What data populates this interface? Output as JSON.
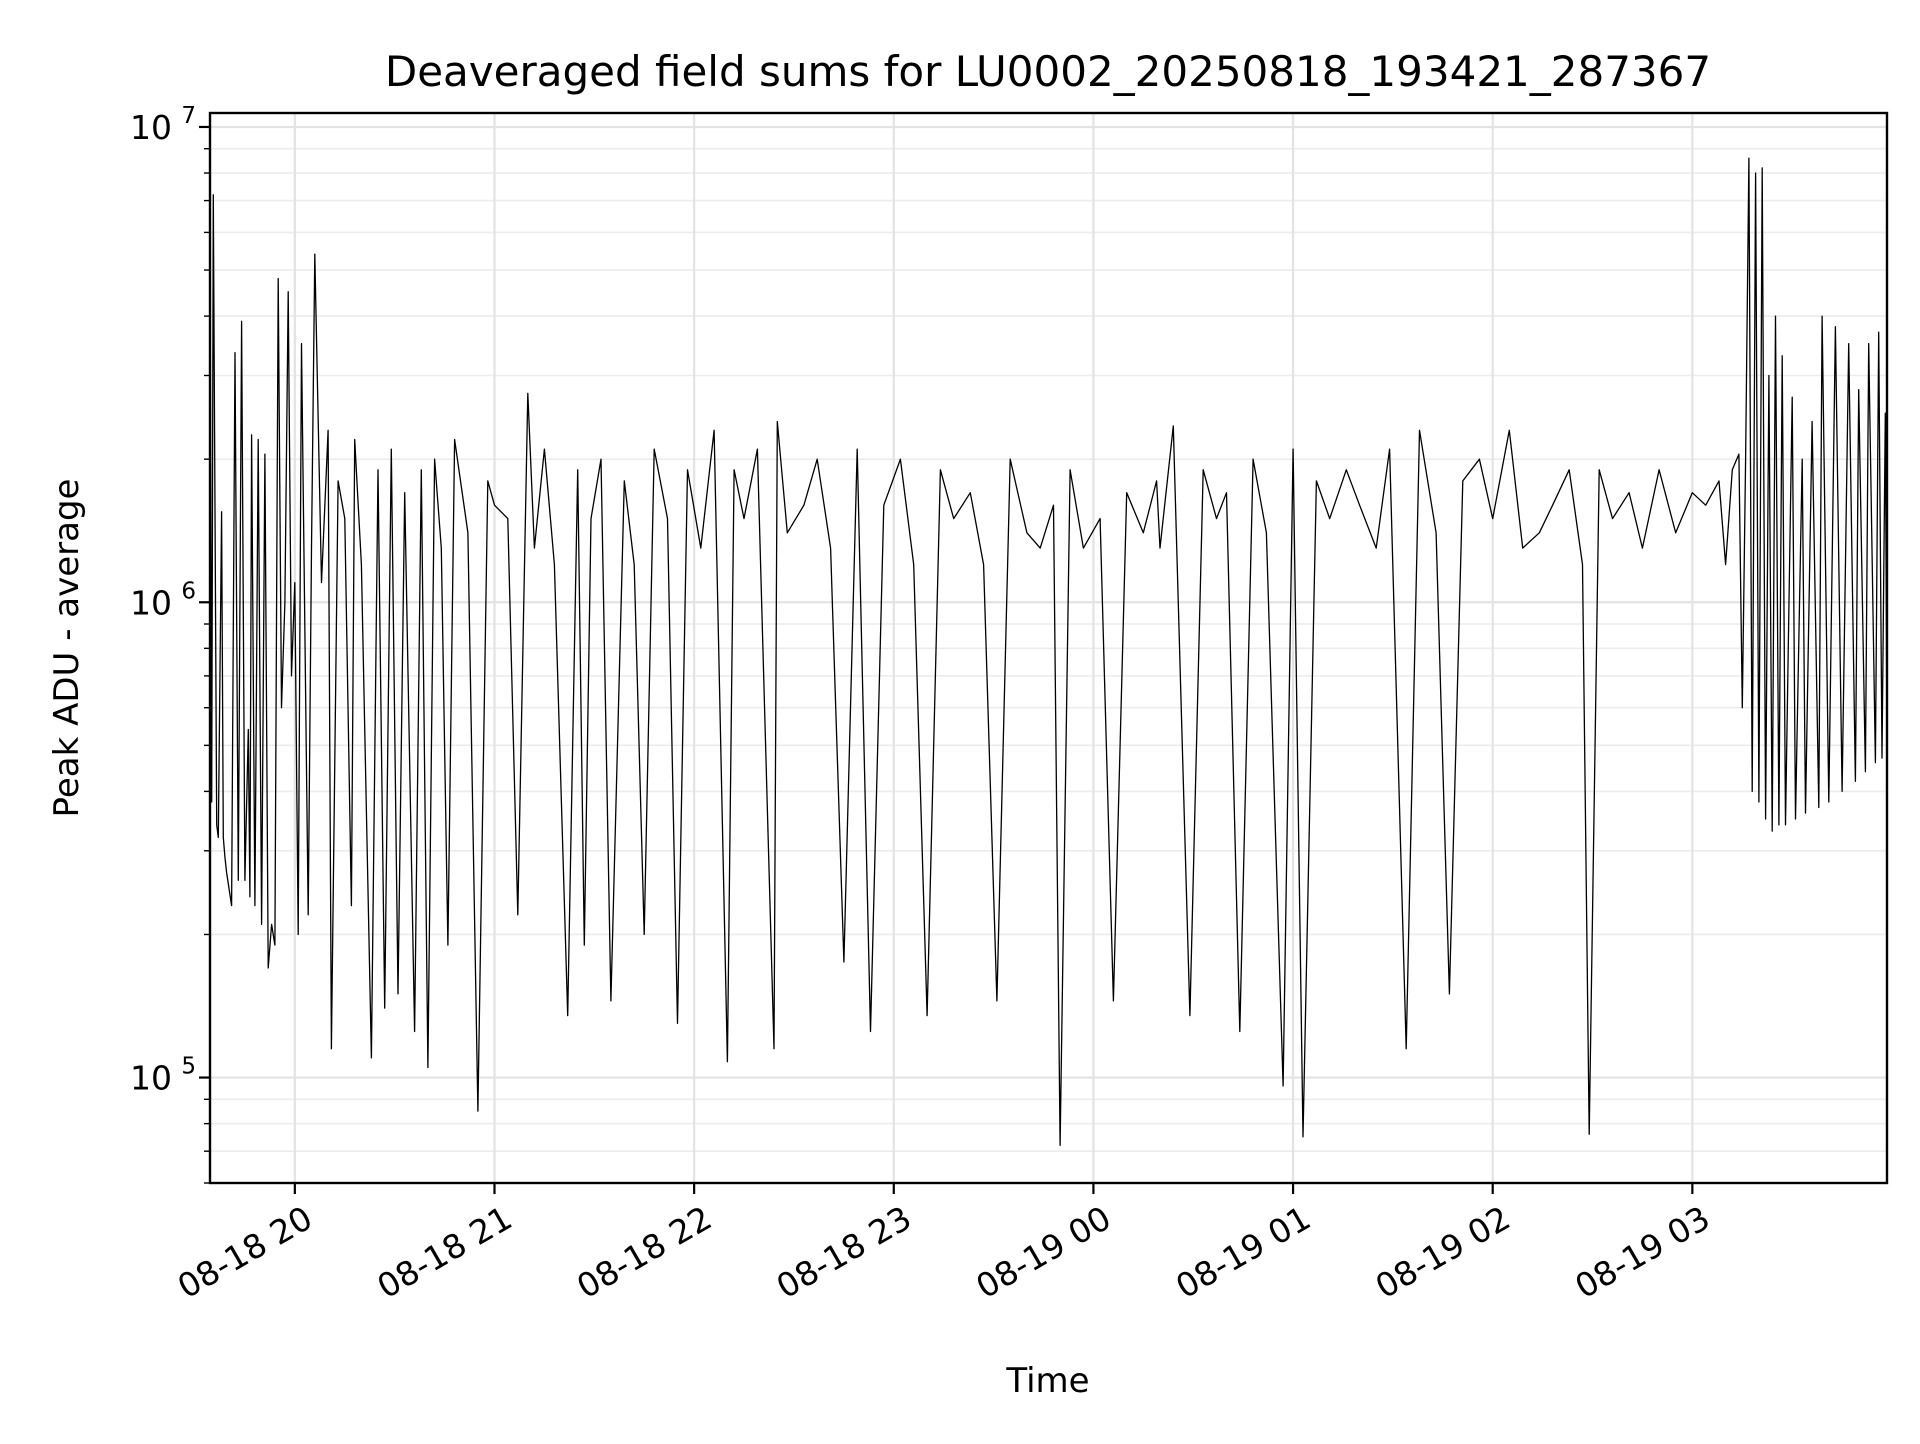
{
  "chart_data": {
    "type": "line",
    "title": "Deaveraged field sums for LU0002_20250818_193421_287367",
    "xlabel": "Time",
    "ylabel": "Peak ADU - average",
    "yscale": "log",
    "ylim": [
      60000,
      10700000
    ],
    "xlim": [
      "08-18 19:34:30",
      "08-19 03:58:30"
    ],
    "grid": true,
    "x_ticks": [
      {
        "label": "08-18 20",
        "time": "08-18 20:00"
      },
      {
        "label": "08-18 21",
        "time": "08-18 21:00"
      },
      {
        "label": "08-18 22",
        "time": "08-18 22:00"
      },
      {
        "label": "08-18 23",
        "time": "08-18 23:00"
      },
      {
        "label": "08-19 00",
        "time": "08-19 00:00"
      },
      {
        "label": "08-19 01",
        "time": "08-19 01:00"
      },
      {
        "label": "08-19 02",
        "time": "08-19 02:00"
      },
      {
        "label": "08-19 03",
        "time": "08-19 03:00"
      }
    ],
    "y_ticks": [
      {
        "base": "10",
        "exp": "5",
        "value": 100000
      },
      {
        "base": "10",
        "exp": "6",
        "value": 1000000
      },
      {
        "base": "10",
        "exp": "7",
        "value": 10000000
      }
    ],
    "series": [
      {
        "color": "#000000",
        "x": [
          "08-18 19:34:30",
          "08-18 19:35:00",
          "08-18 19:35:30",
          "08-18 19:36:30",
          "08-18 19:37:00",
          "08-18 19:38:00",
          "08-18 19:38:30",
          "08-18 19:39:00",
          "08-18 19:39:30",
          "08-18 19:41:00",
          "08-18 19:42:00",
          "08-18 19:43:00",
          "08-18 19:44:00",
          "08-18 19:45:00",
          "08-18 19:46:00",
          "08-18 19:46:30",
          "08-18 19:47:00",
          "08-18 19:48:00",
          "08-18 19:49:00",
          "08-18 19:50:00",
          "08-18 19:51:00",
          "08-18 19:52:00",
          "08-18 19:53:00",
          "08-18 19:54:00",
          "08-18 19:55:00",
          "08-18 19:56:00",
          "08-18 19:57:00",
          "08-18 19:58:00",
          "08-18 19:59:00",
          "08-18 20:00:00",
          "08-18 20:01:00",
          "08-18 20:02:00",
          "08-18 20:03:00",
          "08-18 20:04:00",
          "08-18 20:05:00",
          "08-18 20:06:00",
          "08-18 20:08:00",
          "08-18 20:10:00",
          "08-18 20:11:00",
          "08-18 20:13:00",
          "08-18 20:15:00",
          "08-18 20:17:00",
          "08-18 20:18:00",
          "08-18 20:20:00",
          "08-18 20:23:00",
          "08-18 20:25:00",
          "08-18 20:27:00",
          "08-18 20:29:00",
          "08-18 20:31:00",
          "08-18 20:33:00",
          "08-18 20:36:00",
          "08-18 20:38:00",
          "08-18 20:40:00",
          "08-18 20:42:00",
          "08-18 20:44:00",
          "08-18 20:46:00",
          "08-18 20:48:00",
          "08-18 20:52:00",
          "08-18 20:55:00",
          "08-18 20:58:00",
          "08-18 21:00:00",
          "08-18 21:04:00",
          "08-18 21:07:00",
          "08-18 21:10:00",
          "08-18 21:12:00",
          "08-18 21:15:00",
          "08-18 21:18:00",
          "08-18 21:22:00",
          "08-18 21:25:00",
          "08-18 21:27:00",
          "08-18 21:29:00",
          "08-18 21:32:00",
          "08-18 21:35:00",
          "08-18 21:39:00",
          "08-18 21:42:00",
          "08-18 21:45:00",
          "08-18 21:48:00",
          "08-18 21:52:00",
          "08-18 21:55:00",
          "08-18 21:58:00",
          "08-18 22:02:00",
          "08-18 22:06:00",
          "08-18 22:10:00",
          "08-18 22:12:00",
          "08-18 22:15:00",
          "08-18 22:19:00",
          "08-18 22:24:00",
          "08-18 22:25:00",
          "08-18 22:28:00",
          "08-18 22:33:00",
          "08-18 22:37:00",
          "08-18 22:41:00",
          "08-18 22:45:00",
          "08-18 22:49:00",
          "08-18 22:53:00",
          "08-18 22:57:00",
          "08-18 23:02:00",
          "08-18 23:06:00",
          "08-18 23:10:00",
          "08-18 23:14:00",
          "08-18 23:18:00",
          "08-18 23:23:00",
          "08-18 23:27:00",
          "08-18 23:31:00",
          "08-18 23:35:00",
          "08-18 23:40:00",
          "08-18 23:44:00",
          "08-18 23:48:00",
          "08-18 23:50:00",
          "08-18 23:53:00",
          "08-18 23:57:00",
          "08-19 00:02:00",
          "08-19 00:06:00",
          "08-19 00:10:00",
          "08-19 00:15:00",
          "08-19 00:19:00",
          "08-19 00:20:00",
          "08-19 00:24:00",
          "08-19 00:29:00",
          "08-19 00:33:00",
          "08-19 00:37:00",
          "08-19 00:40:00",
          "08-19 00:44:00",
          "08-19 00:48:00",
          "08-19 00:52:00",
          "08-19 00:57:00",
          "08-19 01:00:00",
          "08-19 01:03:00",
          "08-19 01:07:00",
          "08-19 01:11:00",
          "08-19 01:16:00",
          "08-19 01:20:00",
          "08-19 01:25:00",
          "08-19 01:29:00",
          "08-19 01:34:00",
          "08-19 01:38:00",
          "08-19 01:43:00",
          "08-19 01:47:00",
          "08-19 01:51:00",
          "08-19 01:56:00",
          "08-19 02:00:00",
          "08-19 02:05:00",
          "08-19 02:09:00",
          "08-19 02:14:00",
          "08-19 02:18:00",
          "08-19 02:23:00",
          "08-19 02:27:00",
          "08-19 02:29:00",
          "08-19 02:32:00",
          "08-19 02:36:00",
          "08-19 02:41:00",
          "08-19 02:45:00",
          "08-19 02:50:00",
          "08-19 02:55:00",
          "08-19 03:00:00",
          "08-19 03:04:00",
          "08-19 03:08:00",
          "08-19 03:10:00",
          "08-19 03:12:00",
          "08-19 03:14:00",
          "08-19 03:15:00",
          "08-19 03:16:00",
          "08-19 03:17:00",
          "08-19 03:18:00",
          "08-19 03:19:00",
          "08-19 03:20:00",
          "08-19 03:21:00",
          "08-19 03:22:00",
          "08-19 03:23:00",
          "08-19 03:24:00",
          "08-19 03:25:00",
          "08-19 03:26:00",
          "08-19 03:27:00",
          "08-19 03:28:00",
          "08-19 03:30:00",
          "08-19 03:31:00",
          "08-19 03:33:00",
          "08-19 03:34:00",
          "08-19 03:36:00",
          "08-19 03:38:00",
          "08-19 03:39:00",
          "08-19 03:41:00",
          "08-19 03:43:00",
          "08-19 03:45:00",
          "08-19 03:47:00",
          "08-19 03:49:00",
          "08-19 03:50:00",
          "08-19 03:52:00",
          "08-19 03:53:00",
          "08-19 03:55:00",
          "08-19 03:56:00",
          "08-19 03:57:00",
          "08-19 03:58:00",
          "08-19 03:58:30"
        ],
        "y": [
          6000000,
          380000,
          7200000,
          340000,
          320000,
          1550000,
          320000,
          290000,
          270000,
          230000,
          3350000,
          260000,
          3900000,
          260000,
          540000,
          240000,
          2250000,
          230000,
          2200000,
          210000,
          2050000,
          170000,
          210000,
          190000,
          4800000,
          600000,
          1000000,
          4500000,
          700000,
          1100000,
          200000,
          3500000,
          900000,
          220000,
          1300000,
          5400000,
          1100000,
          2300000,
          115000,
          1800000,
          1500000,
          230000,
          2200000,
          1200000,
          110000,
          1900000,
          140000,
          2100000,
          150000,
          1700000,
          125000,
          1900000,
          105000,
          2000000,
          1300000,
          190000,
          2200000,
          1400000,
          85000,
          1800000,
          1600000,
          1500000,
          220000,
          2750000,
          1300000,
          2100000,
          1200000,
          135000,
          1900000,
          190000,
          1500000,
          2000000,
          145000,
          1800000,
          1200000,
          200000,
          2100000,
          1500000,
          130000,
          1900000,
          1300000,
          2300000,
          108000,
          1900000,
          1500000,
          2100000,
          115000,
          2400000,
          1400000,
          1600000,
          2000000,
          1300000,
          175000,
          2100000,
          125000,
          1600000,
          2000000,
          1200000,
          135000,
          1900000,
          1500000,
          1700000,
          1200000,
          145000,
          2000000,
          1400000,
          1300000,
          1600000,
          72000,
          1900000,
          1300000,
          1500000,
          145000,
          1700000,
          1400000,
          1800000,
          1300000,
          2350000,
          135000,
          1900000,
          1500000,
          1700000,
          125000,
          2000000,
          1400000,
          96000,
          2100000,
          75000,
          1800000,
          1500000,
          1900000,
          1600000,
          1300000,
          2100000,
          115000,
          2300000,
          1400000,
          150000,
          1800000,
          2000000,
          1500000,
          2300000,
          1300000,
          1400000,
          1600000,
          1900000,
          1200000,
          76000,
          1900000,
          1500000,
          1700000,
          1300000,
          1900000,
          1400000,
          1700000,
          1600000,
          1800000,
          1200000,
          1900000,
          2050000,
          600000,
          2000000,
          8600000,
          400000,
          8000000,
          380000,
          8200000,
          350000,
          3000000,
          330000,
          4000000,
          340000,
          3300000,
          340000,
          2700000,
          350000,
          2000000,
          360000,
          2400000,
          370000,
          4000000,
          380000,
          3800000,
          400000,
          3500000,
          420000,
          2800000,
          440000,
          3500000,
          460000,
          3700000,
          470000,
          2500000,
          500000
        ]
      }
    ]
  }
}
